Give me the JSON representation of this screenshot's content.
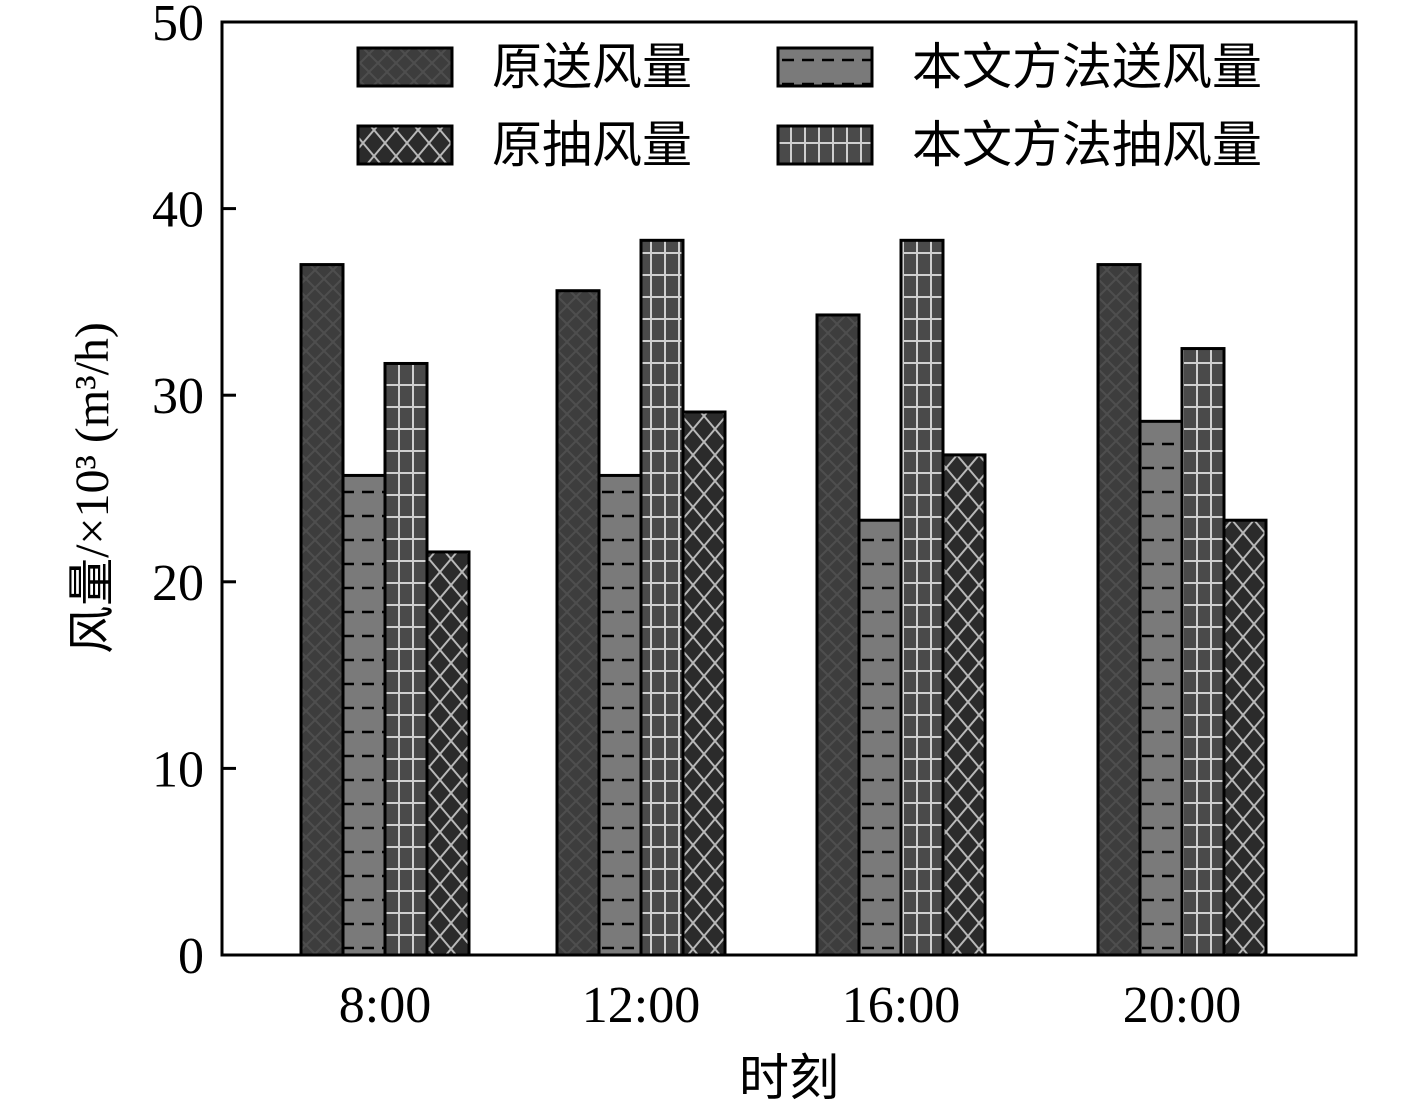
{
  "chart_data": {
    "type": "bar",
    "title": "",
    "xlabel": "时刻",
    "ylabel": "风量/×10³ (m³/h)",
    "ylim": [
      0,
      50
    ],
    "yticks": [
      0,
      10,
      20,
      30,
      40,
      50
    ],
    "categories": [
      "8:00",
      "12:00",
      "16:00",
      "20:00"
    ],
    "legend_position": "top",
    "grid": false,
    "series": [
      {
        "name": "原送风量",
        "values": [
          37.0,
          35.6,
          34.3,
          37.0
        ],
        "color": "#3d3d3d",
        "pattern": "diamond"
      },
      {
        "name": "本文方法送风量",
        "values": [
          25.7,
          25.7,
          23.3,
          28.6
        ],
        "color": "#7a7a7a",
        "pattern": "dash"
      },
      {
        "name": "本文方法抽风量",
        "values": [
          31.7,
          38.3,
          38.3,
          32.5
        ],
        "color": "#4a4a4a",
        "pattern": "grid"
      },
      {
        "name": "原抽风量",
        "values": [
          21.6,
          29.1,
          26.8,
          23.3
        ],
        "color": "#2b2b2b",
        "pattern": "cross"
      }
    ]
  }
}
